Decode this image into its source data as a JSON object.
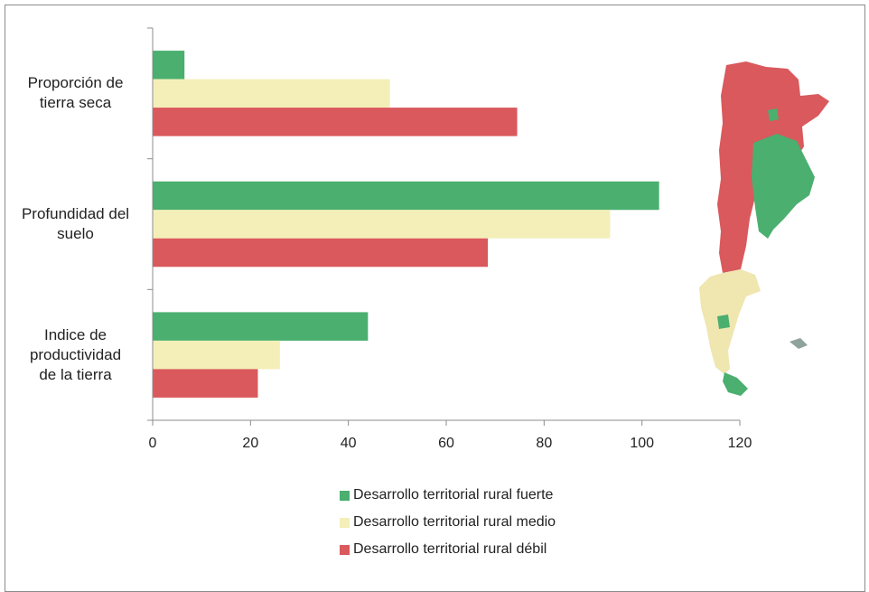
{
  "chart_data": {
    "type": "bar",
    "orientation": "horizontal",
    "title": "",
    "xlabel": "",
    "ylabel": "",
    "categories": [
      "Proporción de tierra seca",
      "Profundidad del suelo",
      "Indice de productividad de la tierra"
    ],
    "category_lines": [
      [
        "Proporción de",
        "tierra seca"
      ],
      [
        "Profundidad del",
        "suelo"
      ],
      [
        "Indice de",
        "productividad",
        "de la tierra"
      ]
    ],
    "series": [
      {
        "name": "Desarrollo territorial rural fuerte",
        "color": "#4aaf6f",
        "values": [
          6.5,
          103.5,
          44
        ]
      },
      {
        "name": "Desarrollo territorial rural medio",
        "color": "#f4efb8",
        "values": [
          48.5,
          93.5,
          26
        ]
      },
      {
        "name": "Desarrollo territorial rural débil",
        "color": "#d9595c",
        "values": [
          74.5,
          68.5,
          21.5
        ]
      }
    ],
    "xlim": [
      0,
      120
    ],
    "xticks": [
      "0",
      "20",
      "40",
      "60",
      "80",
      "100",
      "120"
    ],
    "grid": false,
    "legend_position": "bottom"
  },
  "inset_image": {
    "icon": "argentina-map-icon",
    "colors": {
      "strong": "#4aaf6f",
      "medium": "#efe6b0",
      "weak": "#d9595c"
    }
  }
}
